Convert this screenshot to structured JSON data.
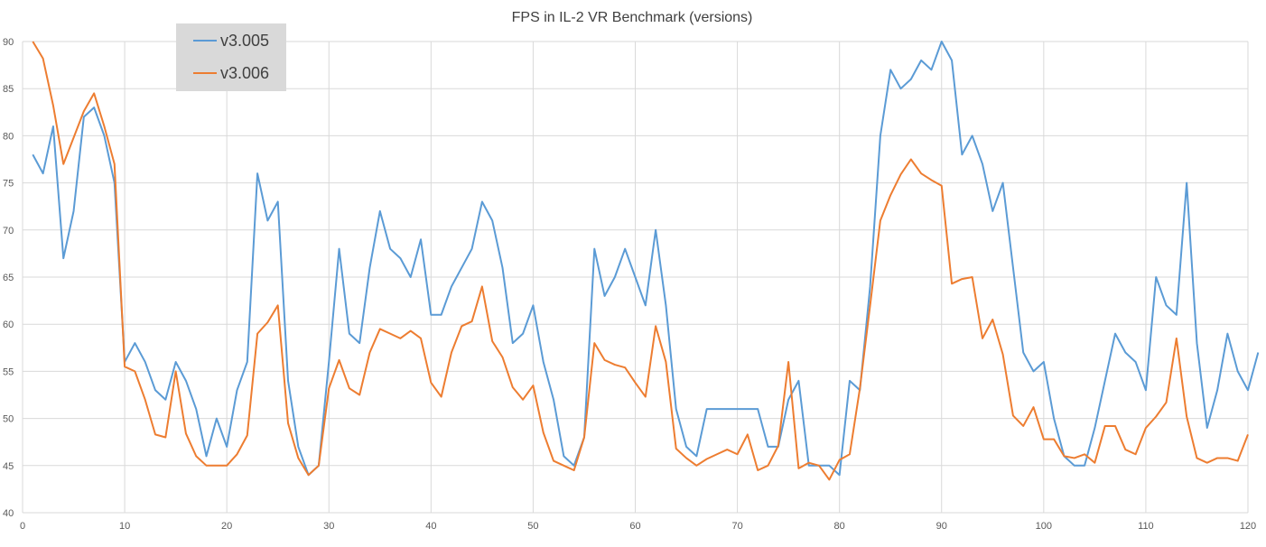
{
  "chart_data": {
    "type": "line",
    "title": "FPS in IL-2 VR Benchmark  (versions)",
    "xlabel": "",
    "ylabel": "",
    "xlim": [
      0,
      120
    ],
    "ylim": [
      40,
      90
    ],
    "x_ticks": [
      0,
      10,
      20,
      30,
      40,
      50,
      60,
      70,
      80,
      90,
      100,
      110,
      120
    ],
    "y_ticks": [
      40,
      45,
      50,
      55,
      60,
      65,
      70,
      75,
      80,
      85,
      90
    ],
    "grid": true,
    "legend_position": "top-left",
    "x_start": 1,
    "series": [
      {
        "name": "v3.005",
        "color": "#5b9bd5",
        "values": [
          78,
          76,
          81,
          67,
          72,
          82,
          83,
          80,
          75,
          56,
          58,
          56,
          53,
          52,
          56,
          54,
          51,
          46,
          50,
          47,
          53,
          56,
          76,
          71,
          73,
          54,
          47,
          44,
          45,
          56,
          68,
          59,
          58,
          66,
          72,
          68,
          67,
          65,
          69,
          61,
          61,
          64,
          66,
          68,
          73,
          71,
          66,
          58,
          59,
          62,
          56,
          52,
          46,
          45,
          48,
          68,
          63,
          65,
          68,
          65,
          62,
          70,
          62,
          51,
          47,
          46,
          51,
          51,
          51,
          51,
          51,
          51,
          47,
          47,
          52,
          54,
          45,
          45,
          45,
          44,
          54,
          53,
          64,
          80,
          87,
          85,
          86,
          88,
          87,
          90,
          88,
          78,
          80,
          77,
          72,
          75,
          66,
          57,
          55,
          56,
          50,
          46,
          45,
          45,
          49,
          54,
          59,
          57,
          56,
          53,
          65,
          62,
          61,
          75,
          58,
          49,
          53,
          59,
          55,
          53,
          57
        ]
      },
      {
        "name": "v3.006",
        "color": "#ed7d31",
        "values": [
          90,
          88.2,
          83.2,
          77,
          79.8,
          82.6,
          84.5,
          81,
          77,
          55.5,
          55,
          52,
          48.3,
          48,
          55,
          48.4,
          46,
          45,
          45,
          45,
          46.2,
          48.2,
          59,
          60.2,
          62,
          49.5,
          45.8,
          44,
          45,
          53.2,
          56.2,
          53.2,
          52.5,
          57,
          59.5,
          59,
          58.5,
          59.3,
          58.5,
          53.8,
          52.3,
          57,
          59.8,
          60.3,
          64,
          58.2,
          56.5,
          53.3,
          52,
          53.5,
          48.5,
          45.5,
          45,
          44.5,
          48,
          58,
          56.2,
          55.7,
          55.4,
          53.8,
          52.3,
          59.8,
          56,
          46.8,
          45.8,
          45,
          45.7,
          46.2,
          46.7,
          46.2,
          48.3,
          44.5,
          45,
          47.1,
          56,
          44.7,
          45.3,
          45,
          43.5,
          45.6,
          46.2,
          53.2,
          62,
          71,
          73.7,
          75.9,
          77.5,
          76,
          75.3,
          74.7,
          64.3,
          64.8,
          65,
          58.5,
          60.5,
          56.8,
          50.3,
          49.2,
          51.2,
          47.8,
          47.8,
          46,
          45.8,
          46.2,
          45.3,
          49.2,
          49.2,
          46.7,
          46.2,
          49,
          50.2,
          51.7,
          58.5,
          50.2,
          45.8,
          45.3,
          45.8,
          45.8,
          45.5,
          48.3
        ]
      }
    ]
  }
}
